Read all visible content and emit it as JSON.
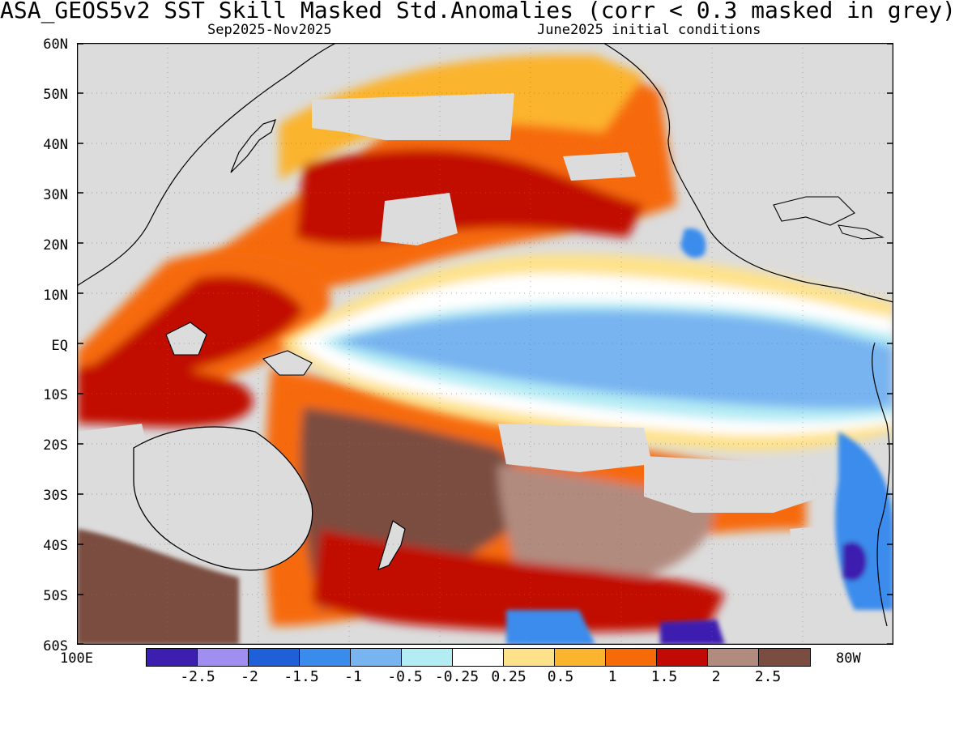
{
  "title": "ASA_GEOS5v2  SST Skill Masked Std.Anomalies (corr < 0.3 masked in grey)",
  "subtitle_left": "Sep2025-Nov2025",
  "subtitle_right": "June2025 initial conditions",
  "lat_labels": [
    "60N",
    "50N",
    "40N",
    "30N",
    "20N",
    "10N",
    "EQ",
    "10S",
    "20S",
    "30S",
    "40S",
    "50S",
    "60S"
  ],
  "lon_left_label": "100E",
  "lon_right_label": "80W",
  "colors": {
    "mask_grey": "#dcdcdc",
    "coast": "#000000",
    "frame": "#000000"
  },
  "legend": {
    "colors": [
      "#3d1fb0",
      "#a08ef0",
      "#1f5fd8",
      "#3a8cec",
      "#78b4f0",
      "#b4ecf4",
      "#ffffff",
      "#fee28a",
      "#fbb42d",
      "#f66a08",
      "#c10906",
      "#b28b7f",
      "#7a4d40"
    ],
    "labels": [
      "-2.5",
      "-2",
      "-1.5",
      "-1",
      "-0.5",
      "-0.25",
      "0.25",
      "0.5",
      "1",
      "1.5",
      "2",
      "2.5"
    ]
  }
}
